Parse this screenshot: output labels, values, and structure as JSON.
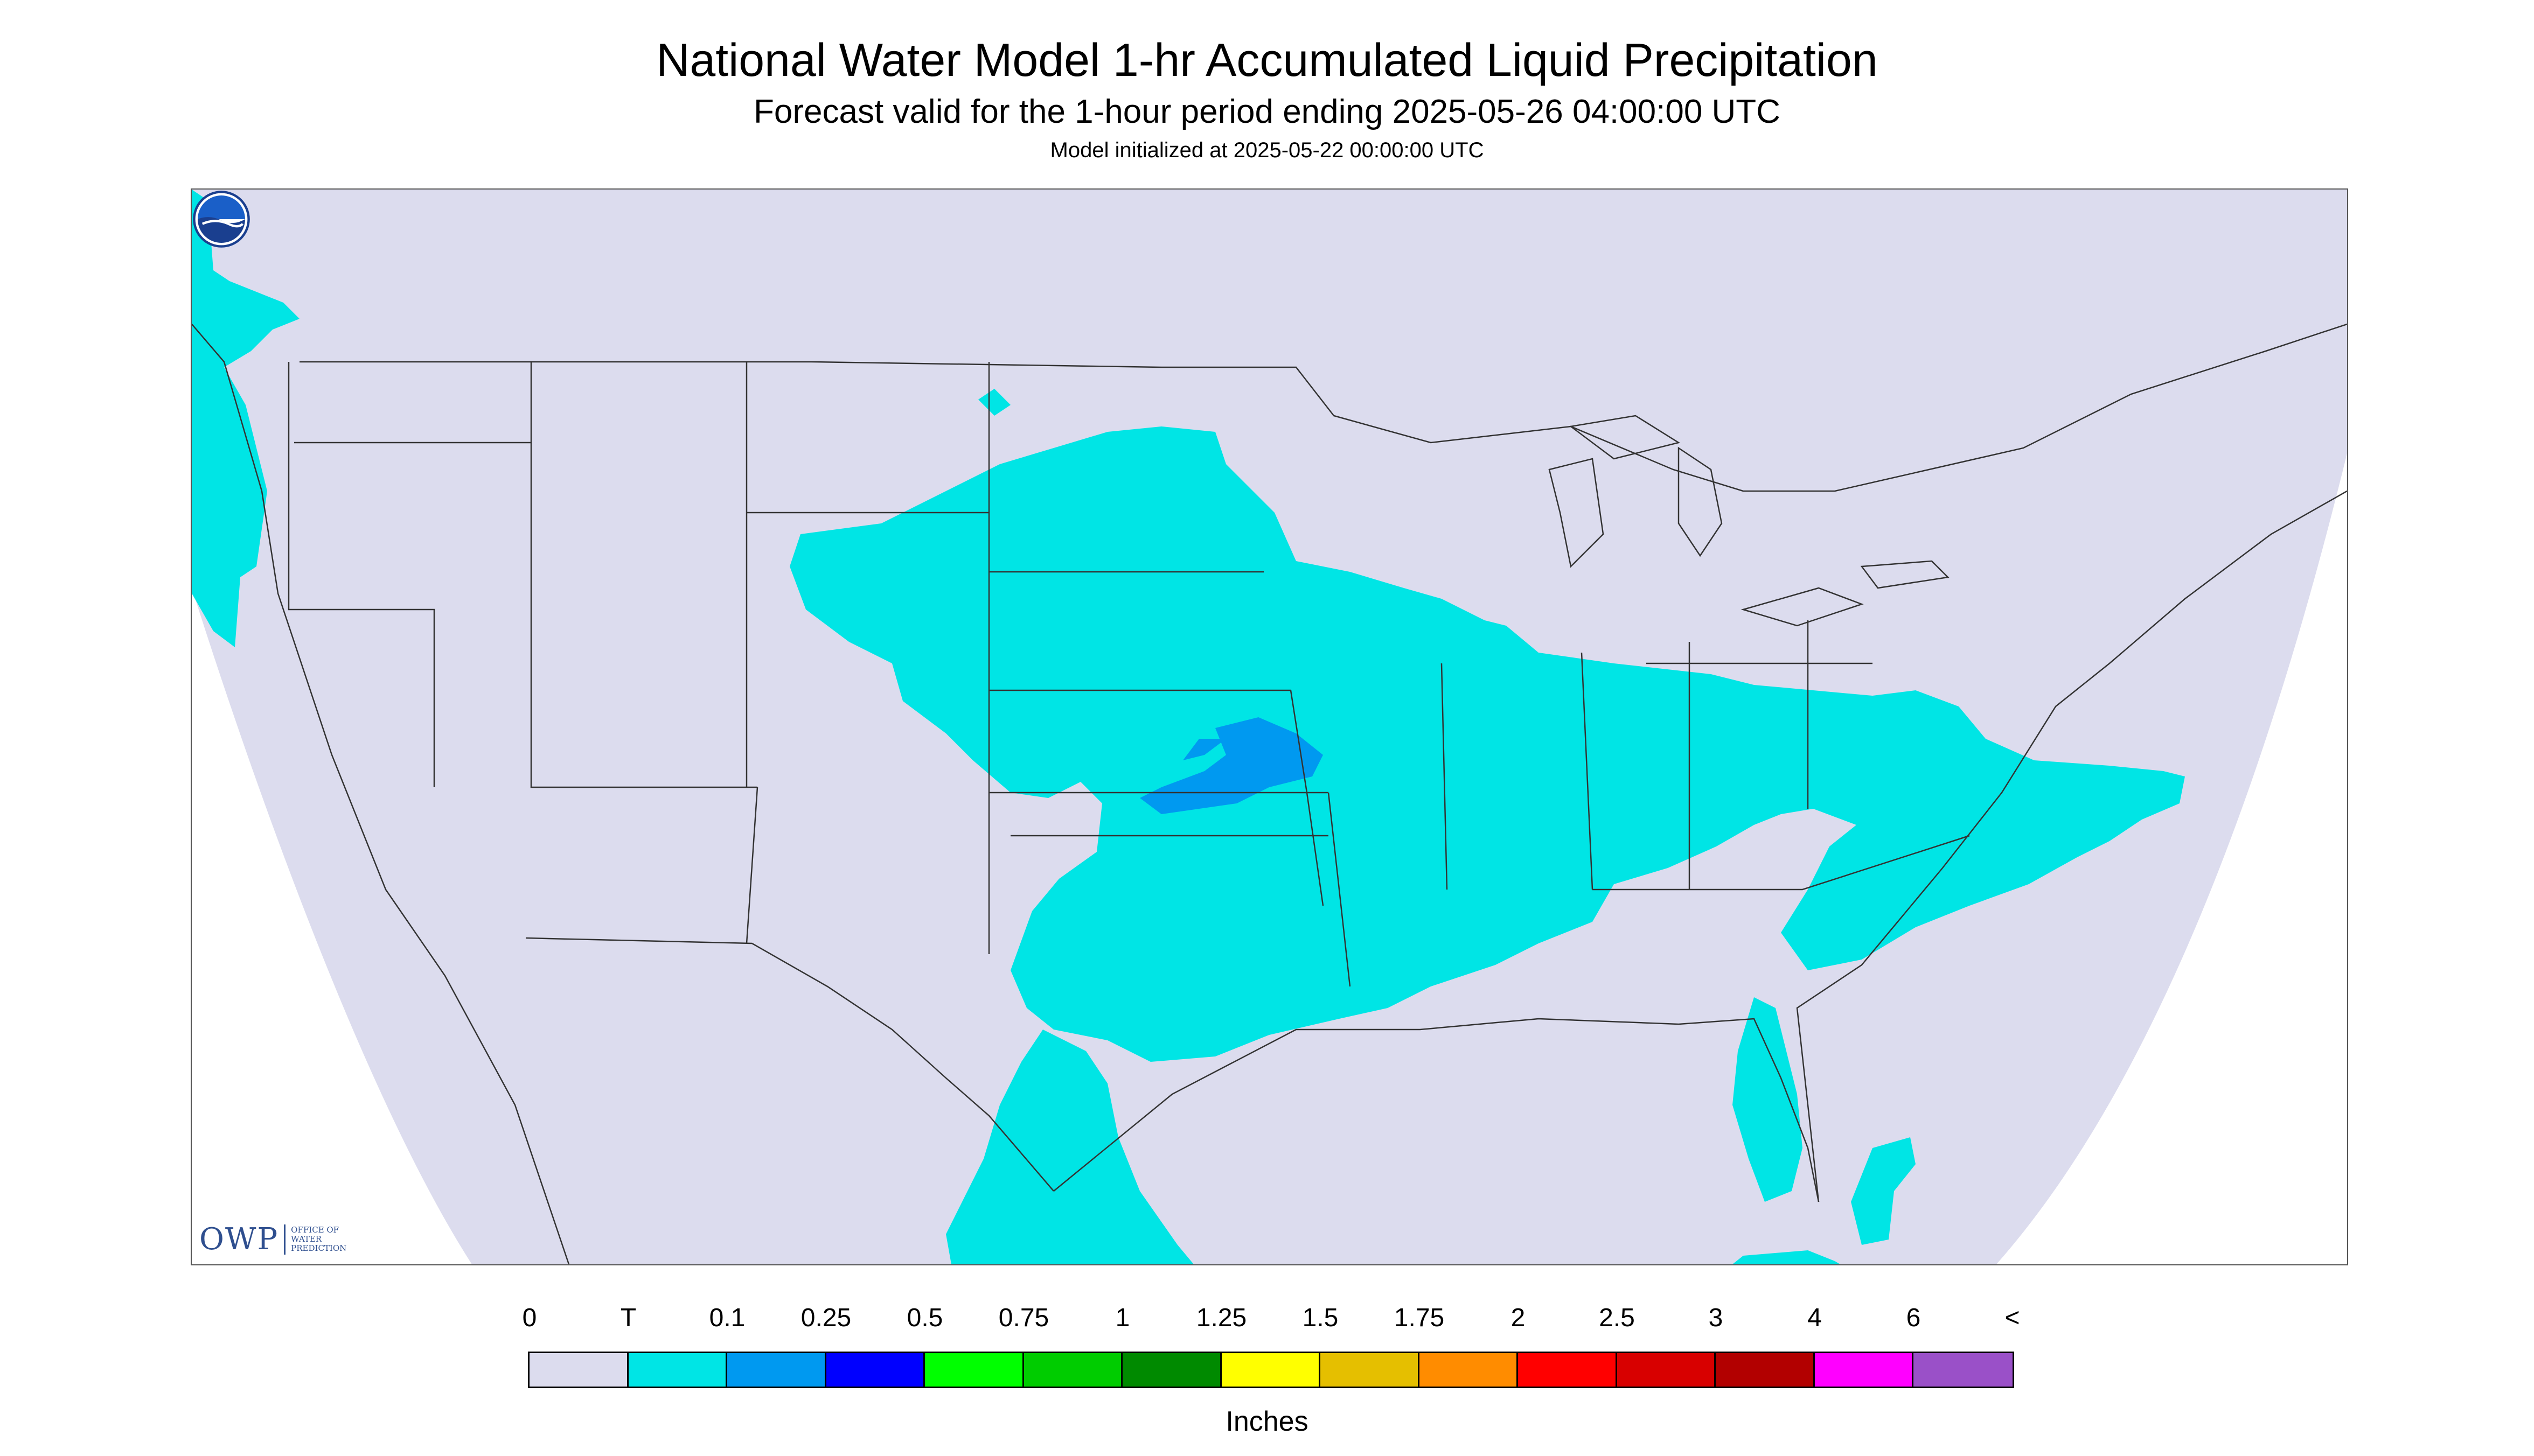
{
  "header": {
    "title": "National Water Model 1-hr Accumulated Liquid Precipitation",
    "subtitle": "Forecast valid for the 1-hour period ending 2025-05-26 04:00:00 UTC",
    "init": "Model initialized at 2025-05-22 00:00:00 UTC"
  },
  "map": {
    "background_color": "#dcdcee",
    "outside_color": "#ffffff",
    "border_color": "#000000",
    "owp_logo": {
      "mark": "OWP",
      "lines": [
        "Office of",
        "Water",
        "Prediction"
      ]
    },
    "noaa_logo": "noaa-logo"
  },
  "legend": {
    "labels": [
      "0",
      "T",
      "0.1",
      "0.25",
      "0.5",
      "0.75",
      "1",
      "1.25",
      "1.5",
      "1.75",
      "2",
      "2.5",
      "3",
      "4",
      "6",
      "<"
    ],
    "colors": [
      "#dcdcee",
      "#00e5e5",
      "#0099f0",
      "#0000ff",
      "#00ff00",
      "#00cc00",
      "#008a00",
      "#ffff00",
      "#e5bf00",
      "#ff8c00",
      "#ff0000",
      "#d80000",
      "#b20000",
      "#ff00ff",
      "#9a50c8"
    ],
    "units": "Inches"
  }
}
